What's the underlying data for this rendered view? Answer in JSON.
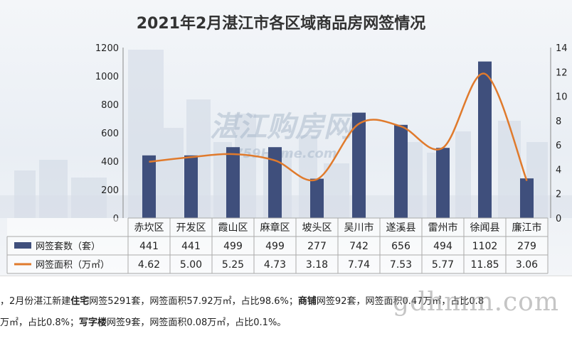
{
  "chart_data": {
    "type": "bar",
    "title": "2021年2月湛江市各区域商品房网签情况",
    "categories": [
      "赤坎区",
      "开发区",
      "霞山区",
      "麻章区",
      "坡头区",
      "吴川市",
      "遂溪县",
      "雷州市",
      "徐闻县",
      "廉江市"
    ],
    "series": [
      {
        "name": "网签套数（套）",
        "type": "bar",
        "axis": "left",
        "color": "#3f4f7c",
        "values": [
          441,
          441,
          499,
          499,
          277,
          742,
          656,
          494,
          1102,
          279
        ]
      },
      {
        "name": "网签面积（万㎡）",
        "type": "line",
        "axis": "right",
        "color": "#e07a2c",
        "values": [
          4.62,
          5.0,
          5.25,
          4.73,
          3.18,
          7.74,
          7.53,
          5.77,
          11.85,
          3.06
        ]
      }
    ],
    "value_labels": [
      [
        "441",
        "441",
        "499",
        "499",
        "277",
        "742",
        "656",
        "494",
        "1102",
        "279"
      ],
      [
        "4.62",
        "5.00",
        "5.25",
        "4.73",
        "3.18",
        "7.74",
        "7.53",
        "5.77",
        "11.85",
        "3.06"
      ]
    ],
    "y_left": {
      "range": [
        0,
        1200
      ],
      "ticks": [
        "0",
        "200",
        "400",
        "600",
        "800",
        "1000",
        "1200"
      ]
    },
    "y_right": {
      "range": [
        0,
        14
      ],
      "ticks": [
        "0",
        "2",
        "4",
        "6",
        "8",
        "10",
        "12",
        "14"
      ]
    },
    "legend": "data-table",
    "grid": false,
    "watermark": {
      "main": "湛江购房网",
      "sub": "0759Home.com"
    }
  },
  "footer": {
    "line1": {
      "t1": "，2月份湛江新建",
      "b1": "住宅",
      "t2": "网签5291套，网签面积57.92万㎡，占比98.6%；",
      "b2": "商铺",
      "t3": "网签92套，网签面积0.47万㎡，占比0.8"
    },
    "line2": {
      "t1": "万㎡，占比0.8%；",
      "b1": "写字楼",
      "t2": "网签9套，网签面积0.08万㎡，占比0.1%。"
    },
    "site_watermark": "gdhmm.com"
  },
  "colors": {
    "bar": "#3f4f7c",
    "line": "#e07a2c",
    "title": "#333333"
  }
}
